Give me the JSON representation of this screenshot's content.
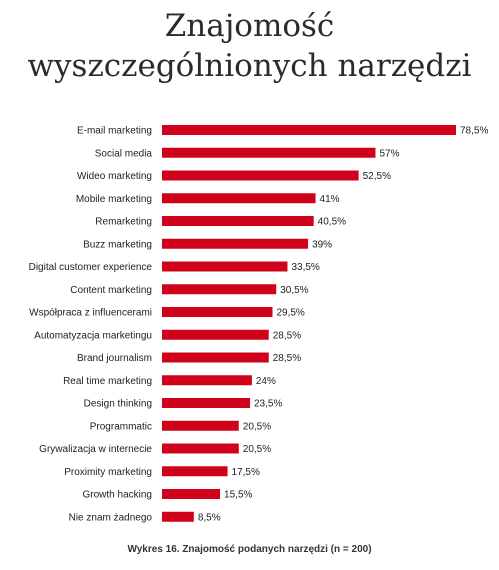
{
  "title_lines": [
    "Znajomość",
    "wyszczególnionych narzędzi"
  ],
  "caption": "Wykres 16. Znajomość podanych narzędzi (n = 200)",
  "colors": {
    "bar": "#d0021b",
    "label": "#222222"
  },
  "chart_data": {
    "type": "bar",
    "orientation": "horizontal",
    "categories": [
      "E-mail marketing",
      "Social media",
      "Wideo marketing",
      "Mobile marketing",
      "Remarketing",
      "Buzz marketing",
      "Digital customer experience",
      "Content marketing",
      "Współpraca z influencerami",
      "Automatyzacja marketingu",
      "Brand journalism",
      "Real time marketing",
      "Design thinking",
      "Programmatic",
      "Grywalizacja w internecie",
      "Proximity marketing",
      "Growth hacking",
      "Nie znam żadnego"
    ],
    "values": [
      78.5,
      57,
      52.5,
      41,
      40.5,
      39,
      33.5,
      30.5,
      29.5,
      28.5,
      28.5,
      24,
      23.5,
      20.5,
      20.5,
      17.5,
      15.5,
      8.5
    ],
    "value_labels": [
      "78,5%",
      "57%",
      "52,5%",
      "41%",
      "40,5%",
      "39%",
      "33,5%",
      "30,5%",
      "29,5%",
      "28,5%",
      "28,5%",
      "24%",
      "23,5%",
      "20,5%",
      "20,5%",
      "17,5%",
      "15,5%",
      "8,5%"
    ],
    "xlim": [
      0,
      78.5
    ],
    "grid": false,
    "legend": "none"
  }
}
